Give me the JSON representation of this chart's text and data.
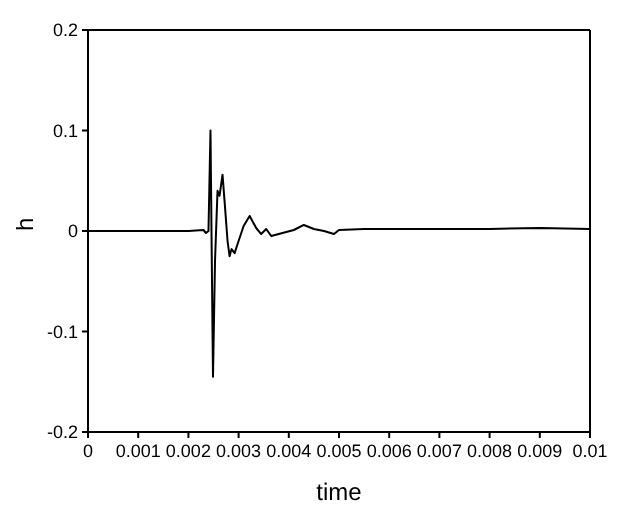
{
  "chart_data": {
    "type": "line",
    "xlabel": "time",
    "ylabel": "h",
    "x": [
      0,
      0.001,
      0.002,
      0.0023,
      0.00235,
      0.0024,
      0.00244,
      0.00247,
      0.00249,
      0.00253,
      0.00258,
      0.00262,
      0.00268,
      0.00272,
      0.00278,
      0.00282,
      0.00286,
      0.00292,
      0.003,
      0.0031,
      0.00322,
      0.00335,
      0.00345,
      0.00355,
      0.00365,
      0.0038,
      0.0041,
      0.0043,
      0.0045,
      0.0047,
      0.0049,
      0.005,
      0.0055,
      0.006,
      0.007,
      0.008,
      0.009,
      0.01
    ],
    "series": [
      {
        "color": "#000000",
        "values": [
          0,
          0,
          0,
          0.001,
          -0.002,
          0,
          0.1,
          -0.05,
          -0.145,
          -0.03,
          0.04,
          0.035,
          0.056,
          0.03,
          -0.01,
          -0.025,
          -0.018,
          -0.022,
          -0.01,
          0.005,
          0.015,
          0.003,
          -0.003,
          0.002,
          -0.005,
          -0.003,
          0.001,
          0.006,
          0.002,
          0,
          -0.003,
          0.001,
          0.002,
          0.002,
          0.002,
          0.002,
          0.003,
          0.002
        ]
      }
    ],
    "xlim": [
      0,
      0.01
    ],
    "xticks": [
      0,
      0.001,
      0.002,
      0.003,
      0.004,
      0.005,
      0.006,
      0.007,
      0.008,
      0.009,
      0.01
    ],
    "ylim": [
      -0.2,
      0.2
    ],
    "yticks": [
      -0.2,
      -0.1,
      0,
      0.1,
      0.2
    ],
    "grid": false,
    "legend": false,
    "marker": "none",
    "line_style": "solid"
  }
}
